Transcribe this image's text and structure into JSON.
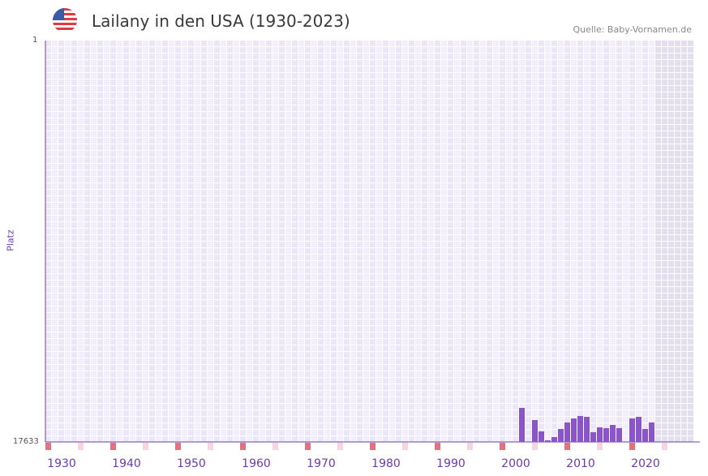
{
  "header": {
    "title": "Lailany in den USA (1930-2023)",
    "source": "Quelle: Baby-Vornamen.de",
    "flag_icon": "us-flag-icon"
  },
  "chart_data": {
    "type": "bar",
    "title": "Lailany in den USA (1930-2023)",
    "xlabel": "",
    "ylabel": "Platz",
    "y_inverted": true,
    "ylim": [
      1,
      17633
    ],
    "y_ticks": [
      "1",
      "17633"
    ],
    "x_range": [
      1928,
      2028
    ],
    "x_ticks": [
      "1930",
      "1940",
      "1950",
      "1960",
      "1970",
      "1980",
      "1990",
      "2000",
      "2010",
      "2020"
    ],
    "shaded_from_year": 2022,
    "bar_color": "#8a55c8",
    "years": [
      2001,
      2003,
      2004,
      2005,
      2006,
      2007,
      2008,
      2009,
      2010,
      2011,
      2012,
      2013,
      2014,
      2015,
      2016,
      2018,
      2019,
      2020,
      2021
    ],
    "ranks": [
      16137,
      16672,
      17170,
      17562,
      17420,
      17063,
      16779,
      16601,
      16494,
      16530,
      17206,
      16992,
      17028,
      16885,
      17028,
      16601,
      16530,
      17063,
      16779
    ]
  }
}
